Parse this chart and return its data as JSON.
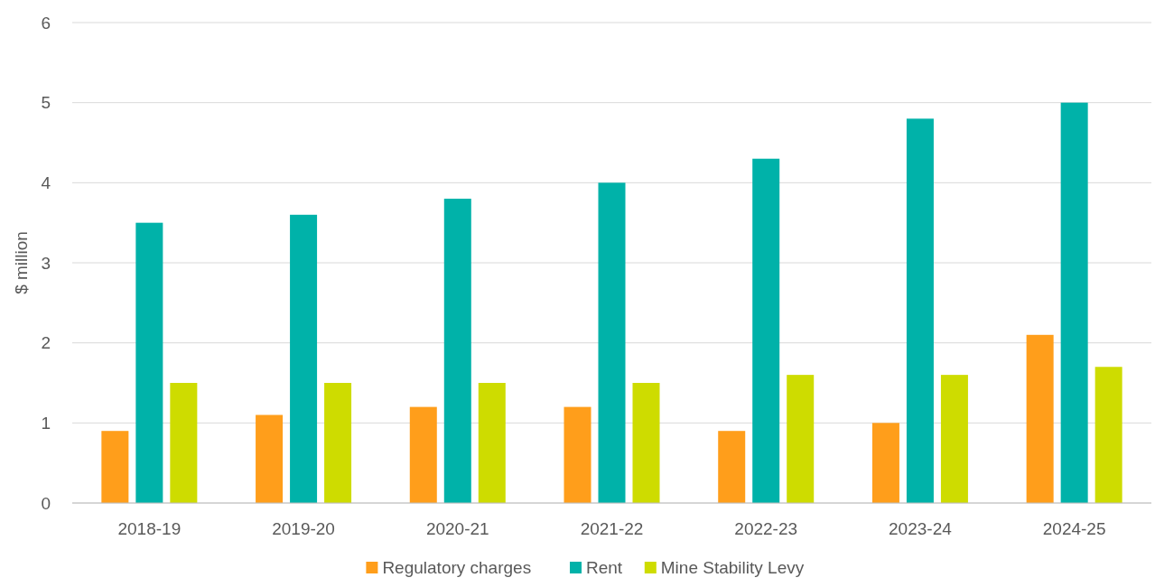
{
  "chart_data": {
    "type": "bar",
    "ylabel": "$ million",
    "categories": [
      "2018-19",
      "2019-20",
      "2020-21",
      "2021-22",
      "2022-23",
      "2023-24",
      "2024-25"
    ],
    "series": [
      {
        "name": "Regulatory charges",
        "color": "#ff9e1b",
        "values": [
          0.9,
          1.1,
          1.2,
          1.2,
          0.9,
          1.0,
          2.1
        ]
      },
      {
        "name": "Rent",
        "color": "#00b2a9",
        "values": [
          3.5,
          3.6,
          3.8,
          4.0,
          4.3,
          4.8,
          5.0
        ]
      },
      {
        "name": "Mine Stability Levy",
        "color": "#cedc00",
        "values": [
          1.5,
          1.5,
          1.5,
          1.5,
          1.6,
          1.6,
          1.7
        ]
      }
    ],
    "ylim": [
      0,
      6
    ],
    "yticks": [
      0,
      1,
      2,
      3,
      4,
      5,
      6
    ],
    "grid": "y",
    "legend": "bottom"
  }
}
